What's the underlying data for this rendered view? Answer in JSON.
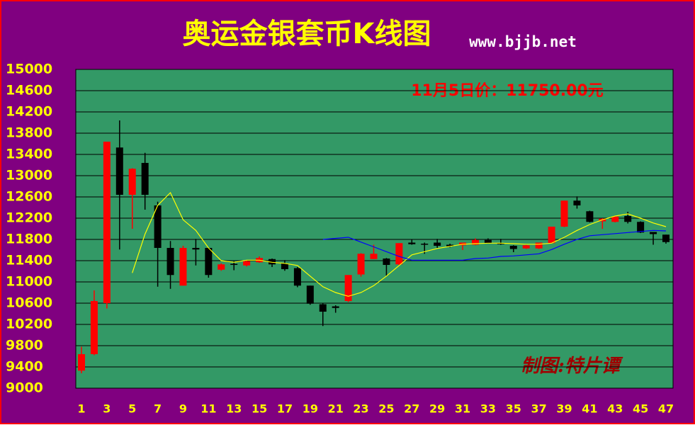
{
  "chart_data": {
    "type": "candlestick",
    "title": "奥运金银套币K线图",
    "subtitle": "www.bjjb.net",
    "annotation": "11月5日价：11750.00元",
    "watermark": "制图:特片谭",
    "categories": [
      1,
      null,
      3,
      null,
      5,
      null,
      7,
      null,
      9,
      null,
      11,
      null,
      13,
      null,
      15,
      null,
      17,
      null,
      19,
      null,
      21,
      null,
      23,
      null,
      25,
      null,
      27,
      null,
      29,
      null,
      31,
      null,
      33,
      null,
      35,
      null,
      37,
      null,
      39,
      null,
      41,
      null,
      43,
      null,
      45,
      null,
      47
    ],
    "open": [
      9330,
      9640,
      10600,
      13530,
      12640,
      13240,
      12440,
      11640,
      10930,
      11640,
      11640,
      11230,
      11340,
      11310,
      11370,
      11430,
      11350,
      11260,
      10930,
      10580,
      10540,
      10640,
      11140,
      11430,
      11440,
      11330,
      11740,
      11720,
      11740,
      11700,
      11690,
      11700,
      11790,
      11730,
      11680,
      11630,
      11630,
      11730,
      12040,
      12530,
      12330,
      12140,
      12130,
      12240,
      12130,
      11940,
      11890
    ],
    "high": [
      9780,
      10840,
      13640,
      14040,
      13140,
      13430,
      12510,
      11770,
      11680,
      11810,
      11640,
      11350,
      11390,
      11410,
      11480,
      11440,
      11410,
      11280,
      10930,
      10600,
      10560,
      11130,
      11540,
      11700,
      11450,
      11730,
      11800,
      11740,
      11810,
      11720,
      11740,
      11820,
      11820,
      11810,
      11690,
      11700,
      11740,
      12040,
      12530,
      12610,
      12340,
      12200,
      12240,
      12320,
      12140,
      11940,
      11890
    ],
    "low": [
      9280,
      9620,
      10500,
      11610,
      12000,
      12360,
      10910,
      10870,
      10930,
      11310,
      11080,
      11210,
      11220,
      11290,
      11360,
      11280,
      11210,
      10900,
      10570,
      10170,
      10420,
      10620,
      11100,
      11430,
      11120,
      11310,
      11700,
      11530,
      11640,
      11650,
      11600,
      11690,
      11720,
      11700,
      11560,
      11620,
      11620,
      11720,
      12030,
      12380,
      12120,
      12000,
      12120,
      12100,
      11920,
      11700,
      11720
    ],
    "close": [
      9640,
      10640,
      13640,
      12640,
      13130,
      12640,
      11640,
      11130,
      11640,
      11610,
      11130,
      11330,
      11320,
      11390,
      11450,
      11330,
      11240,
      10930,
      10590,
      10440,
      10510,
      11130,
      11530,
      11530,
      11320,
      11730,
      11710,
      11700,
      11680,
      11670,
      11740,
      11790,
      11730,
      11710,
      11620,
      11690,
      11740,
      12040,
      12530,
      12440,
      12130,
      12190,
      12230,
      12130,
      11930,
      11900,
      11750
    ],
    "up_color": "#ff0000",
    "down_color": "#000000",
    "series": [
      {
        "color": "#ffff00",
        "values": [
          null,
          null,
          null,
          null,
          11170,
          11900,
          12440,
          12680,
          12170,
          11970,
          11640,
          11400,
          11370,
          11410,
          11410,
          11370,
          11350,
          11310,
          11110,
          10910,
          10800,
          10730,
          10800,
          10930,
          11110,
          11310,
          11510,
          11570,
          11630,
          11670,
          11710,
          11720,
          11730,
          11730,
          11720,
          11710,
          11710,
          11730,
          11840,
          11970,
          12080,
          12170,
          12240,
          12280,
          12200,
          12110,
          12040
        ]
      },
      {
        "color": "#0000ff",
        "values": [
          null,
          null,
          null,
          null,
          null,
          null,
          null,
          null,
          null,
          null,
          null,
          null,
          null,
          null,
          null,
          null,
          null,
          null,
          null,
          11800,
          11820,
          11840,
          11750,
          11660,
          11570,
          11480,
          11410,
          11410,
          11410,
          11410,
          11410,
          11440,
          11450,
          11480,
          11490,
          11510,
          11530,
          11610,
          11710,
          11800,
          11870,
          11890,
          11910,
          11930,
          11950,
          11970,
          11960
        ]
      }
    ],
    "ylim": [
      9000,
      15000
    ],
    "yticks": [
      9000,
      9400,
      9800,
      10200,
      10600,
      11000,
      11400,
      11800,
      12200,
      12600,
      13000,
      13400,
      13800,
      14200,
      14600,
      15000
    ],
    "grid": true
  }
}
